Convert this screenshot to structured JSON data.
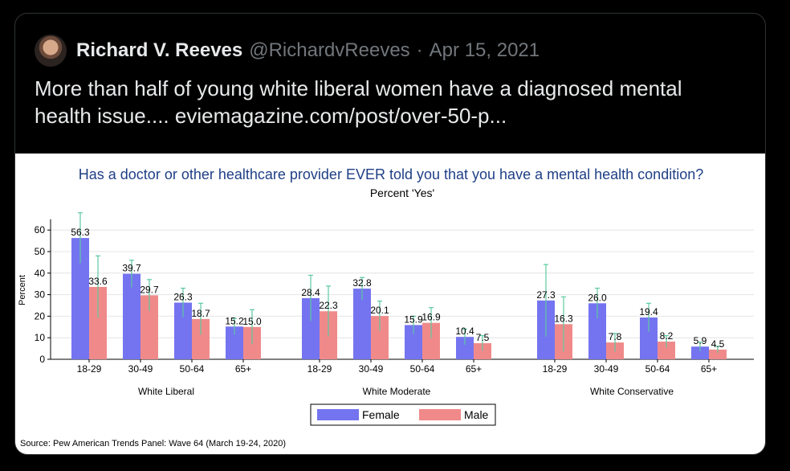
{
  "tweet": {
    "author_name": "Richard V. Reeves",
    "handle": "@RichardvReeves",
    "separator": "·",
    "date": "Apr 15, 2021",
    "text_line1": "More than half of young white liberal women have a diagnosed mental",
    "text_line2": "health issue.... eviemagazine.com/post/over-50-p..."
  },
  "chart_data": {
    "type": "bar",
    "title": "Has a doctor or other healthcare provider EVER told you that you have a mental health condition?",
    "subtitle": "Percent 'Yes'",
    "ylabel": "Percent",
    "ylim": [
      0,
      65
    ],
    "yticks": [
      0,
      10,
      20,
      30,
      40,
      50,
      60
    ],
    "groups": [
      "White Liberal",
      "White Moderate",
      "White Conservative"
    ],
    "categories": [
      "18-29",
      "30-49",
      "50-64",
      "65+"
    ],
    "series": [
      {
        "name": "Female",
        "color": "#7474f0",
        "values": [
          [
            56.3,
            39.7,
            26.3,
            15.2
          ],
          [
            28.4,
            32.8,
            15.9,
            10.4
          ],
          [
            27.3,
            26.0,
            19.4,
            5.9
          ]
        ],
        "labels": [
          [
            "56.3",
            "39.7",
            "26.3",
            "15.2"
          ],
          [
            "28.4",
            "32.8",
            "15.9",
            "10.4"
          ],
          [
            "27.3",
            "26.0",
            "19.4",
            "5.9"
          ]
        ],
        "err": [
          [
            68,
            46,
            33,
            19
          ],
          [
            39,
            38,
            20,
            14
          ],
          [
            44,
            33,
            26,
            8
          ]
        ]
      },
      {
        "name": "Male",
        "color": "#f08a8a",
        "values": [
          [
            33.6,
            29.7,
            18.7,
            15.0
          ],
          [
            22.3,
            20.1,
            16.9,
            7.5
          ],
          [
            16.3,
            7.8,
            8.2,
            4.5
          ]
        ],
        "labels": [
          [
            "33.6",
            "29.7",
            "18.7",
            "15.0"
          ],
          [
            "22.3",
            "20.1",
            "16.9",
            "7.5"
          ],
          [
            "16.3",
            "7.8",
            "8.2",
            "4.5"
          ]
        ],
        "err": [
          [
            48,
            37,
            26,
            23
          ],
          [
            34,
            27,
            24,
            11
          ],
          [
            29,
            12,
            11,
            6
          ]
        ]
      }
    ],
    "legend_position": "bottom-center",
    "grid": true,
    "source": "Source: Pew American Trends Panel: Wave 64 (March 19-24, 2020)"
  }
}
